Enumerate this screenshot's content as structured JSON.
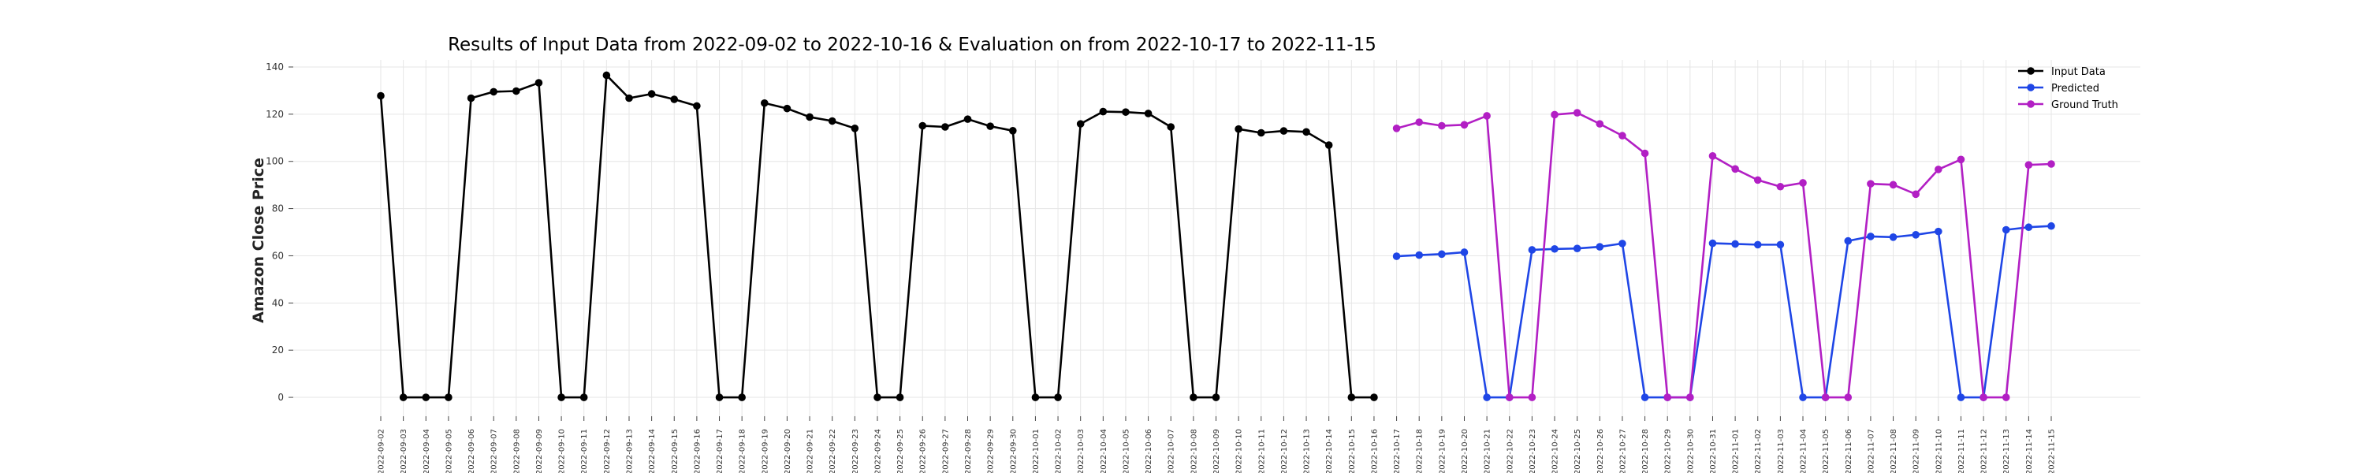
{
  "chart_data": {
    "type": "line",
    "title": "Results of Input Data from 2022-09-02 to 2022-10-16 & Evaluation on from 2022-10-17 to 2022-11-15",
    "xlabel": "",
    "ylabel": "Amazon Close Price",
    "ylim": [
      -8,
      143
    ],
    "yticks": [
      0,
      20,
      40,
      60,
      80,
      100,
      120,
      140
    ],
    "grid": true,
    "legend_position": "top-right",
    "x_tick_labels": [
      "2022-09-02",
      "2022-09-03",
      "2022-09-04",
      "2022-09-05",
      "2022-09-06",
      "2022-09-07",
      "2022-09-08",
      "2022-09-09",
      "2022-09-10",
      "2022-09-11",
      "2022-09-12",
      "2022-09-13",
      "2022-09-14",
      "2022-09-15",
      "2022-09-16",
      "2022-09-17",
      "2022-09-18",
      "2022-09-19",
      "2022-09-20",
      "2022-09-21",
      "2022-09-22",
      "2022-09-23",
      "2022-09-24",
      "2022-09-25",
      "2022-09-26",
      "2022-09-27",
      "2022-09-28",
      "2022-09-29",
      "2022-09-30",
      "2022-10-01",
      "2022-10-02",
      "2022-10-03",
      "2022-10-04",
      "2022-10-05",
      "2022-10-06",
      "2022-10-07",
      "2022-10-08",
      "2022-10-09",
      "2022-10-10",
      "2022-10-11",
      "2022-10-12",
      "2022-10-13",
      "2022-10-14",
      "2022-10-15",
      "2022-10-16",
      "2022-10-17",
      "2022-10-18",
      "2022-10-19",
      "2022-10-20",
      "2022-10-21",
      "2022-10-22",
      "2022-10-23",
      "2022-10-24",
      "2022-10-25",
      "2022-10-26",
      "2022-10-27",
      "2022-10-28",
      "2022-10-29",
      "2022-10-30",
      "2022-10-31",
      "2022-11-01",
      "2022-11-02",
      "2022-11-03",
      "2022-11-04",
      "2022-11-05",
      "2022-11-06",
      "2022-11-07",
      "2022-11-08",
      "2022-11-09",
      "2022-11-10",
      "2022-11-11",
      "2022-11-12",
      "2022-11-13",
      "2022-11-14",
      "2022-11-15"
    ],
    "series": [
      {
        "name": "Input Data",
        "color": "#000000",
        "start_date": "2022-09-02",
        "values": [
          127.8,
          0,
          0,
          0,
          126.8,
          129.5,
          129.8,
          133.3,
          0,
          0,
          136.5,
          126.8,
          128.6,
          126.3,
          123.5,
          0,
          0,
          124.7,
          122.4,
          118.8,
          117.1,
          114.0,
          0,
          0,
          115.1,
          114.6,
          117.9,
          114.9,
          113.0,
          0,
          0,
          115.9,
          121.1,
          120.9,
          120.3,
          114.6,
          0,
          0,
          113.7,
          112.1,
          112.9,
          112.5,
          106.9,
          0,
          0
        ]
      },
      {
        "name": "Predicted",
        "color": "#1f46e6",
        "start_date": "2022-10-17",
        "values": [
          59.8,
          60.3,
          60.7,
          61.5,
          0,
          0,
          62.5,
          62.9,
          63.1,
          63.8,
          65.2,
          0,
          0,
          0,
          65.3,
          65.0,
          64.7,
          64.7,
          0,
          0,
          66.3,
          68.2,
          67.9,
          68.9,
          70.3,
          0,
          0,
          71.0,
          72.1,
          72.6
        ]
      },
      {
        "name": "Ground Truth",
        "color": "#b21fc4",
        "start_date": "2022-10-17",
        "values": [
          114.0,
          116.6,
          115.1,
          115.5,
          119.3,
          0,
          0,
          119.8,
          120.6,
          115.9,
          110.9,
          103.4,
          0,
          0,
          102.3,
          96.8,
          92.1,
          89.3,
          90.9,
          0,
          0,
          90.5,
          90.1,
          86.1,
          96.6,
          100.8,
          0,
          0,
          98.5,
          98.9
        ]
      }
    ]
  }
}
